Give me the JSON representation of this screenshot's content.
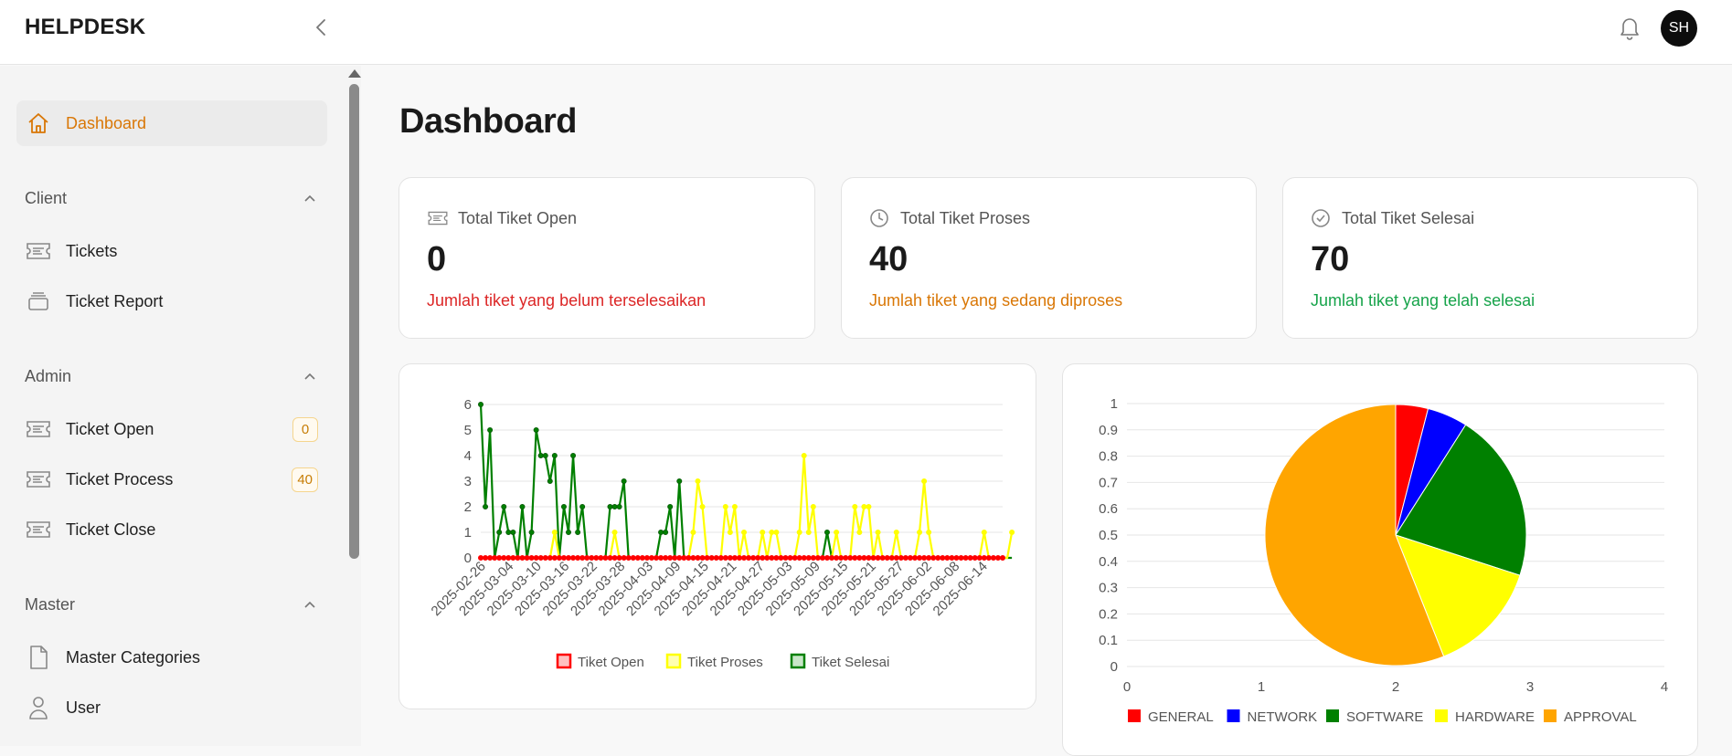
{
  "app": {
    "brand": "HELPDESK",
    "avatar_initials": "SH"
  },
  "sidebar": {
    "dashboard_label": "Dashboard",
    "sections": {
      "client": {
        "title": "Client",
        "items": [
          {
            "label": "Tickets"
          },
          {
            "label": "Ticket Report"
          }
        ]
      },
      "admin": {
        "title": "Admin",
        "items": [
          {
            "label": "Ticket Open",
            "badge": "0"
          },
          {
            "label": "Ticket Process",
            "badge": "40"
          },
          {
            "label": "Ticket Close"
          }
        ]
      },
      "master": {
        "title": "Master",
        "items": [
          {
            "label": "Master Categories"
          },
          {
            "label": "User"
          }
        ]
      }
    }
  },
  "main": {
    "title": "Dashboard",
    "stats": [
      {
        "label": "Total Tiket Open",
        "value": "0",
        "desc": "Jumlah tiket yang belum terselesaikan",
        "color": "#dc2626"
      },
      {
        "label": "Total Tiket Proses",
        "value": "40",
        "desc": "Jumlah tiket yang sedang diproses",
        "color": "#d97706"
      },
      {
        "label": "Total Tiket Selesai",
        "value": "70",
        "desc": "Jumlah tiket yang telah selesai",
        "color": "#16a34a"
      }
    ]
  },
  "chart_data": [
    {
      "type": "line",
      "title": "",
      "xlabel": "",
      "ylabel": "",
      "ylim": [
        0,
        6
      ],
      "yticks": [
        "0",
        "1",
        "2",
        "3",
        "4",
        "5",
        "6"
      ],
      "x_tick_labels": [
        "2025-02-26",
        "2025-03-04",
        "2025-03-10",
        "2025-03-16",
        "2025-03-22",
        "2025-03-28",
        "2025-04-03",
        "2025-04-09",
        "2025-04-15",
        "2025-04-21",
        "2025-04-27",
        "2025-05-03",
        "2025-05-09",
        "2025-05-15",
        "2025-05-21",
        "2025-05-27",
        "2025-06-02",
        "2025-06-08",
        "2025-06-14"
      ],
      "legend_position": "bottom",
      "series": [
        {
          "name": "Tiket Open",
          "color": "#ff0000",
          "values": [
            0,
            0,
            0,
            0,
            0,
            0,
            0,
            0,
            0,
            0,
            0,
            0,
            0,
            0,
            0,
            0,
            0,
            0,
            0,
            0,
            0,
            0,
            0,
            0,
            0,
            0,
            0,
            0,
            0,
            0,
            0,
            0,
            0,
            0,
            0,
            0,
            0,
            0,
            0,
            0,
            0,
            0,
            0,
            0,
            0,
            0,
            0,
            0,
            0,
            0,
            0,
            0,
            0,
            0,
            0,
            0,
            0,
            0,
            0,
            0,
            0,
            0,
            0,
            0,
            0,
            0,
            0,
            0,
            0,
            0,
            0,
            0,
            0,
            0,
            0,
            0,
            0,
            0,
            0,
            0,
            0,
            0,
            0,
            0,
            0,
            0,
            0,
            0,
            0,
            0,
            0,
            0,
            0,
            0,
            0,
            0,
            0,
            0,
            0,
            0,
            0,
            0,
            0,
            0,
            0,
            0,
            0,
            0,
            0,
            0,
            0,
            0,
            0,
            0
          ]
        },
        {
          "name": "Tiket Proses",
          "color": "#ffff00",
          "values": [
            0,
            0,
            0,
            0,
            0,
            0,
            0,
            0,
            0,
            0,
            0,
            0,
            0,
            0,
            0,
            0,
            1,
            0,
            0,
            0,
            0,
            0,
            0,
            0,
            0,
            0,
            0,
            0,
            0,
            1,
            0,
            0,
            0,
            0,
            0,
            0,
            0,
            0,
            0,
            0,
            0,
            0,
            0,
            0,
            0,
            0,
            1,
            3,
            2,
            0,
            0,
            0,
            0,
            2,
            1,
            2,
            0,
            1,
            0,
            0,
            0,
            1,
            0,
            1,
            1,
            0,
            0,
            0,
            0,
            1,
            4,
            1,
            2,
            0,
            0,
            0,
            0,
            1,
            0,
            0,
            0,
            2,
            1,
            2,
            2,
            0,
            1,
            0,
            0,
            0,
            1,
            0,
            0,
            0,
            0,
            1,
            3,
            1,
            0,
            0,
            0,
            0,
            0,
            0,
            0,
            0,
            0,
            0,
            0,
            1,
            0,
            0,
            0,
            0,
            0,
            1
          ]
        },
        {
          "name": "Tiket Selesai",
          "color": "#008000",
          "values": [
            6,
            2,
            5,
            0,
            1,
            2,
            1,
            1,
            0,
            2,
            0,
            1,
            5,
            4,
            4,
            3,
            4,
            0,
            2,
            1,
            4,
            1,
            2,
            0,
            0,
            0,
            0,
            0,
            2,
            2,
            2,
            3,
            0,
            0,
            0,
            0,
            0,
            0,
            0,
            1,
            1,
            2,
            0,
            3,
            0,
            0,
            0,
            0,
            0,
            0,
            0,
            0,
            0,
            0,
            0,
            0,
            0,
            0,
            0,
            0,
            0,
            0,
            0,
            0,
            0,
            0,
            0,
            0,
            0,
            0,
            0,
            0,
            0,
            0,
            0,
            1,
            0,
            0,
            0,
            0,
            0,
            0,
            0,
            0,
            0,
            0,
            0,
            0,
            0,
            0,
            0,
            0,
            0,
            0,
            0,
            0,
            0,
            0,
            0,
            0,
            0,
            0,
            0,
            0,
            0,
            0,
            0,
            0,
            0,
            0,
            0,
            0,
            0,
            0,
            0,
            0
          ]
        }
      ]
    },
    {
      "type": "pie",
      "title": "",
      "ylim": [
        0,
        1
      ],
      "xlim": [
        0,
        4
      ],
      "yticks": [
        "0",
        "0.1",
        "0.2",
        "0.3",
        "0.4",
        "0.5",
        "0.6",
        "0.7",
        "0.8",
        "0.9",
        "1"
      ],
      "xticks": [
        "0",
        "1",
        "2",
        "3",
        "4"
      ],
      "legend_position": "bottom",
      "slices": [
        {
          "label": "GENERAL",
          "value": 4,
          "color": "#ff0000"
        },
        {
          "label": "NETWORK",
          "value": 5,
          "color": "#0000ff"
        },
        {
          "label": "SOFTWARE",
          "value": 21,
          "color": "#008000"
        },
        {
          "label": "HARDWARE",
          "value": 14,
          "color": "#ffff00"
        },
        {
          "label": "APPROVAL",
          "value": 56,
          "color": "#ffa500"
        }
      ]
    }
  ]
}
